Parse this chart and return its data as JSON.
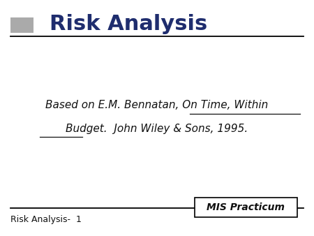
{
  "title": "Risk Analysis",
  "title_color": "#1F2D6E",
  "title_fontsize": 22,
  "title_bold": true,
  "gray_bar_color": "#AAAAAA",
  "body_text_line1": "Based on E.M. Bennatan, On Time, Within",
  "body_text_line2": "Budget.  John Wiley & Sons, 1995.",
  "body_fontsize": 11,
  "body_color": "#111111",
  "footer_left": "Risk Analysis-  1",
  "footer_right": "MIS Practicum",
  "footer_fontsize": 9,
  "background_color": "#FFFFFF",
  "line_color": "#000000",
  "prefix_line1": "Based on E.M. Bennatan, ",
  "underline1": "On Time, Within",
  "underline2": "Budget",
  "line2_after_underline": ".  John Wiley & Sons, 1995."
}
